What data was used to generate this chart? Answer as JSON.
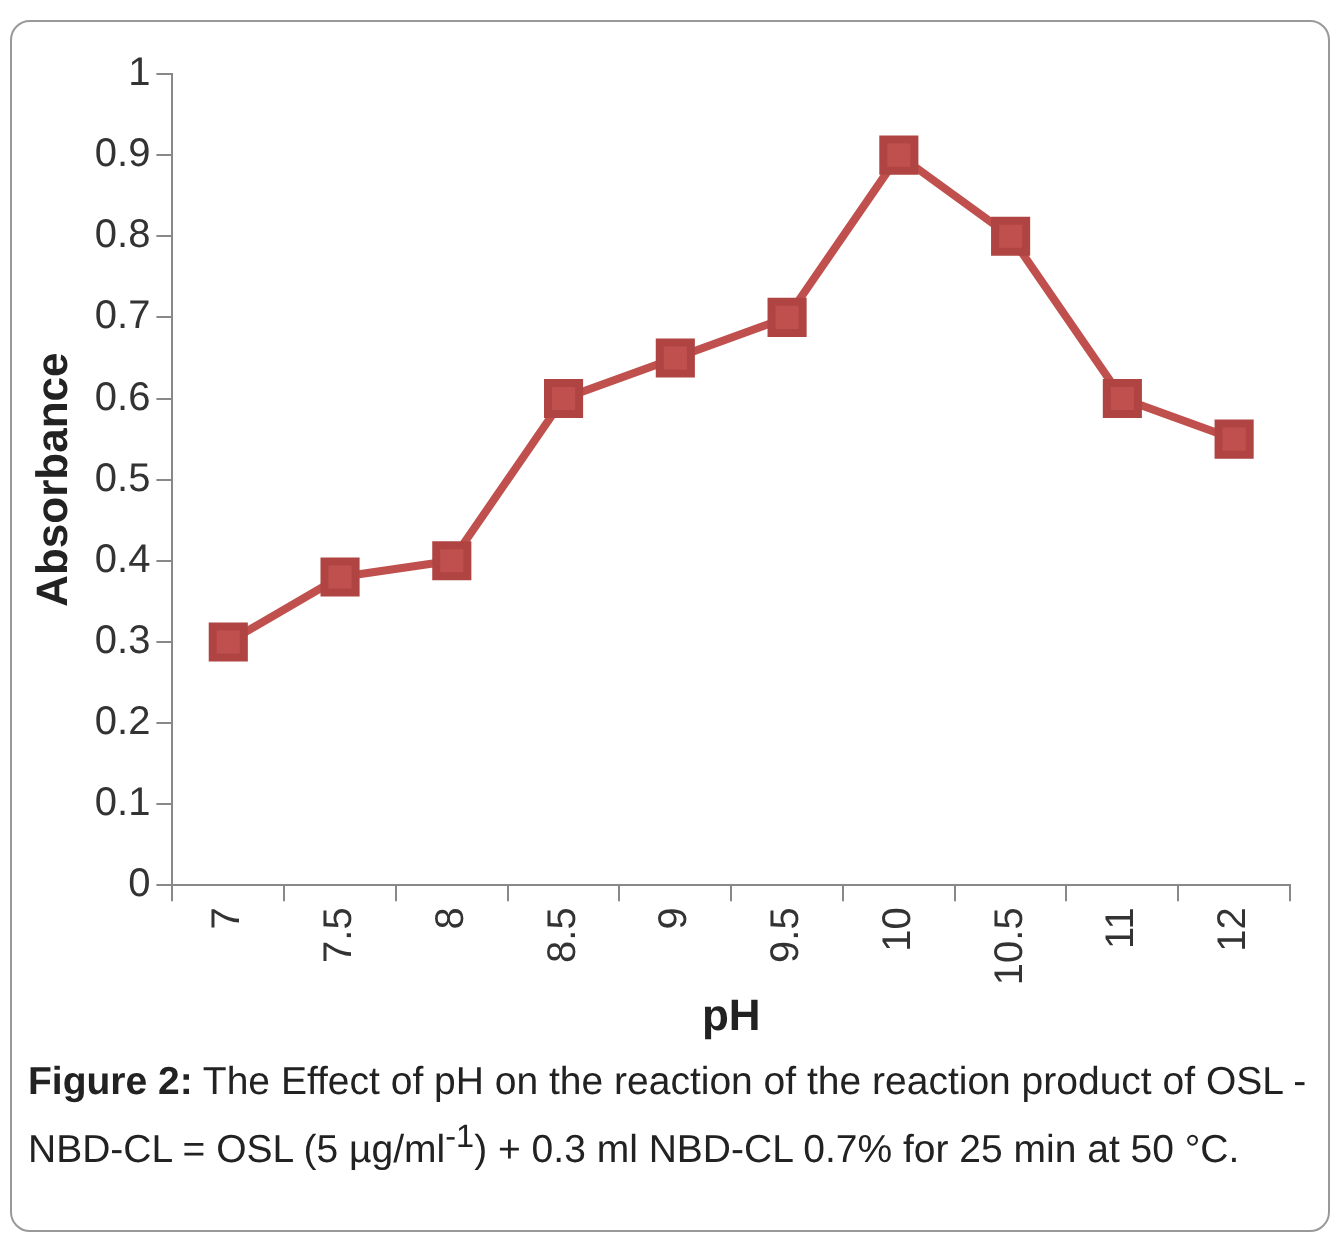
{
  "chart_data": {
    "type": "line",
    "xlabel": "pH",
    "ylabel": "Absorbance",
    "categories": [
      "7",
      "7.5",
      "8",
      "8.5",
      "9",
      "9.5",
      "10",
      "10.5",
      "11",
      "12"
    ],
    "series": [
      {
        "color": "#c0504d",
        "values": [
          0.3,
          0.38,
          0.4,
          0.6,
          0.65,
          0.7,
          0.9,
          0.8,
          0.6,
          0.55
        ]
      }
    ],
    "ylim": [
      0,
      1
    ],
    "yticks": [
      0,
      0.1,
      0.2,
      0.3,
      0.4,
      0.5,
      0.6,
      0.7,
      0.8,
      0.9,
      1
    ],
    "grid": false,
    "legend": false,
    "marker": "square",
    "line_style": "solid",
    "annotations": [
      "Figure 2:",
      "The Effect of pH on the reaction of the reaction product of OSL - NBD-CL = OSL (5 µg/ml$^{-1}$) + 0.3 ml NBD-CL 0.7% for 25 min at 50 °C."
    ]
  }
}
